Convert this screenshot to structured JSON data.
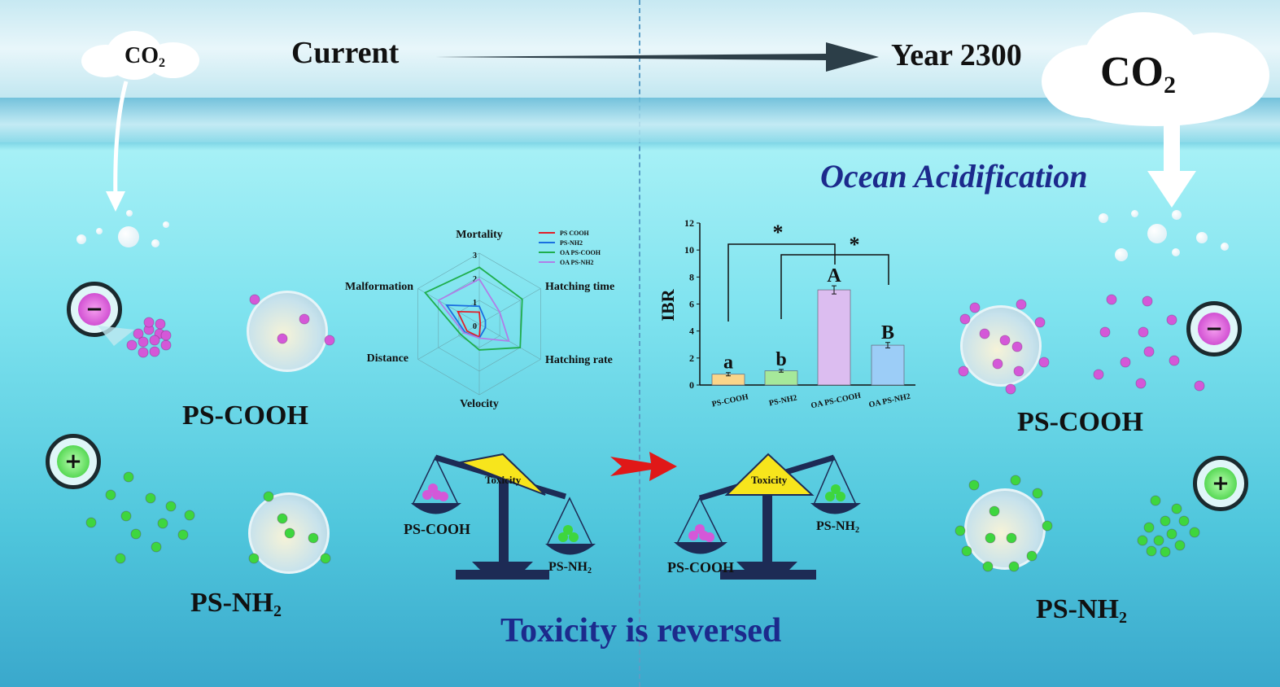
{
  "header": {
    "left_label": "Current",
    "right_label": "Year 2300",
    "co2_small": "CO",
    "co2_large": "CO",
    "co2_sub": "2"
  },
  "ocean_acidification": "Ocean Acidification",
  "left": {
    "cooh_label": "PS-COOH",
    "nh2_label": "PS-NH",
    "nh2_sub": "2",
    "minus": "−",
    "plus": "+"
  },
  "right": {
    "cooh_label": "PS-COOH",
    "nh2_label": "PS-NH",
    "nh2_sub": "2",
    "minus": "−",
    "plus": "+"
  },
  "scales": {
    "center_label": "Toxicity",
    "cooh": "PS-COOH",
    "nh2": "PS-NH",
    "nh2_sub": "2"
  },
  "footer": "Toxicity is reversed",
  "colors": {
    "cooh_particle": "#d458d8",
    "nh2_particle": "#3ed63e",
    "title_blue": "#1c2a8c",
    "arrow_red": "#e01818"
  },
  "chart_data": [
    {
      "type": "radar",
      "axes": [
        "Mortality",
        "Hatching time",
        "Hatching rate",
        "Velocity",
        "Distance",
        "Malformation"
      ],
      "ticks": [
        "0",
        "1",
        "2",
        "3"
      ],
      "range": [
        0,
        3
      ],
      "series": [
        {
          "name": "PS COOH",
          "color": "#e0202a",
          "values": [
            0.5,
            0.05,
            0.05,
            0.55,
            0.6,
            1.05
          ]
        },
        {
          "name": "PS-NH2",
          "color": "#1a6fe0",
          "values": [
            0.75,
            0.3,
            0.3,
            0.6,
            0.7,
            1.6
          ]
        },
        {
          "name": "OA PS-COOH",
          "color": "#1fae4c",
          "values": [
            2.4,
            2.1,
            2.0,
            1.1,
            0.9,
            2.65
          ]
        },
        {
          "name": "OA PS-NH2",
          "color": "#b07ee8",
          "values": [
            1.9,
            1.0,
            1.45,
            0.6,
            0.75,
            2.0
          ]
        }
      ],
      "legend": "top-right"
    },
    {
      "type": "bar",
      "ylabel": "IBR",
      "ylim": [
        0,
        12
      ],
      "yticks": [
        "0",
        "2",
        "4",
        "6",
        "8",
        "10",
        "12"
      ],
      "categories": [
        "PS-COOH",
        "PS-NH2",
        "OA PS-COOH",
        "OA PS-NH2"
      ],
      "values": [
        0.8,
        1.05,
        7.05,
        2.95
      ],
      "errors": [
        0.12,
        0.1,
        0.3,
        0.2
      ],
      "letters": [
        "a",
        "b",
        "A",
        "B"
      ],
      "colors": [
        "#fbd58a",
        "#a6e89a",
        "#dcbdf0",
        "#9ccdf7"
      ],
      "significance": [
        "*",
        "*"
      ]
    }
  ]
}
